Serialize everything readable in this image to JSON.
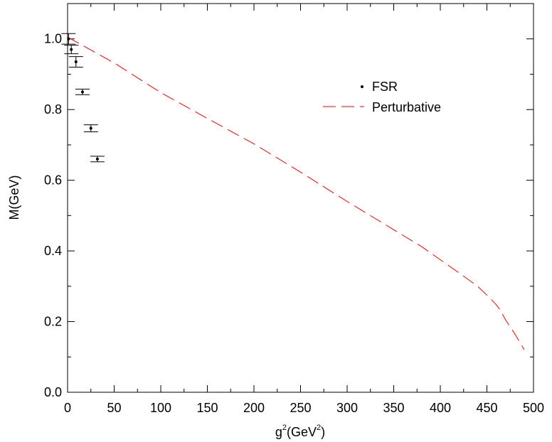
{
  "chart_data": {
    "type": "scatter",
    "xlabel": {
      "base": "g",
      "sup": "2",
      "mid": "(GeV",
      "sup2": "2",
      "end": ")"
    },
    "ylabel": "M(GeV)",
    "xlim": [
      0,
      500
    ],
    "ylim": [
      0,
      1.1
    ],
    "x_ticks": [
      0,
      50,
      100,
      150,
      200,
      250,
      300,
      350,
      400,
      450,
      500
    ],
    "x_tick_labels": [
      "0",
      "50",
      "100",
      "150",
      "200",
      "250",
      "300",
      "350",
      "400",
      "450",
      "500"
    ],
    "y_ticks": [
      0.0,
      0.2,
      0.4,
      0.6,
      0.8,
      1.0
    ],
    "y_tick_labels": [
      "0.0",
      "0.2",
      "0.4",
      "0.6",
      "0.8",
      "1.0"
    ],
    "grid": false,
    "legend_position": "top-right",
    "series": [
      {
        "name": "FSR",
        "kind": "points-with-errorbars",
        "color": "#000000",
        "points": [
          {
            "x": 1,
            "y": 1.0,
            "err": 0.015
          },
          {
            "x": 4,
            "y": 0.97,
            "err": 0.012
          },
          {
            "x": 9,
            "y": 0.935,
            "err": 0.015
          },
          {
            "x": 16,
            "y": 0.85,
            "err": 0.008
          },
          {
            "x": 25,
            "y": 0.747,
            "err": 0.01
          },
          {
            "x": 32,
            "y": 0.66,
            "err": 0.008
          }
        ]
      },
      {
        "name": "Perturbative",
        "kind": "dashed-line",
        "color": "#ff0000",
        "x": [
          0,
          50,
          100,
          150,
          200,
          250,
          300,
          350,
          380,
          400,
          420,
          440,
          450,
          460,
          465,
          470,
          480,
          490
        ],
        "y": [
          1.005,
          0.932,
          0.848,
          0.775,
          0.703,
          0.623,
          0.54,
          0.46,
          0.412,
          0.375,
          0.338,
          0.3,
          0.275,
          0.248,
          0.23,
          0.205,
          0.165,
          0.12
        ]
      }
    ]
  }
}
